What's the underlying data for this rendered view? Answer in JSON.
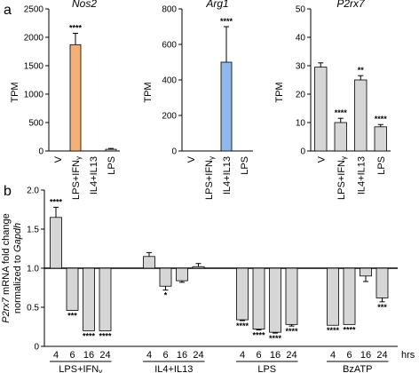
{
  "panel_a_letter": "a",
  "panel_b_letter": "b",
  "chart_data": [
    {
      "type": "bar",
      "title": "Nos2",
      "ylabel": "TPM",
      "categories": [
        "V",
        "LPS+IFNγ",
        "IL4+IL13",
        "LPS"
      ],
      "values": [
        0,
        1870,
        0,
        30
      ],
      "errors": [
        0,
        200,
        0,
        15
      ],
      "ylim": [
        0,
        2500
      ],
      "yticks": [
        "0",
        "500",
        "1000",
        "1500",
        "2000",
        "2500"
      ],
      "significance": [
        "",
        "****",
        "",
        ""
      ],
      "colors": {
        "LPS+IFNγ": "#f4b077"
      }
    },
    {
      "type": "bar",
      "title": "Arg1",
      "ylabel": "TPM",
      "categories": [
        "V",
        "LPS+IFNγ",
        "IL4+IL13",
        "LPS"
      ],
      "values": [
        0,
        0,
        500,
        0
      ],
      "errors": [
        0,
        0,
        200,
        0
      ],
      "ylim": [
        0,
        800
      ],
      "yticks": [
        "0",
        "200",
        "400",
        "600",
        "800"
      ],
      "significance": [
        "",
        "",
        "****",
        ""
      ],
      "colors": {
        "IL4+IL13": "#8fb8ec"
      }
    },
    {
      "type": "bar",
      "title": "P2rx7",
      "ylabel": "TPM",
      "categories": [
        "V",
        "LPS+IFNγ",
        "IL4+IL13",
        "LPS"
      ],
      "values": [
        29.5,
        10,
        25,
        8.5
      ],
      "errors": [
        1.5,
        1.5,
        1.5,
        0.8
      ],
      "ylim": [
        0,
        50
      ],
      "yticks": [
        "0",
        "10",
        "20",
        "30",
        "40",
        "50"
      ],
      "significance": [
        "",
        "****",
        "**",
        "****"
      ],
      "colors": {}
    },
    {
      "type": "bar",
      "ylabel_lines": [
        "P2rx7 mRNA fold change",
        "normalized to Gapdh"
      ],
      "baseline": 1.0,
      "ylim": [
        0,
        2.0
      ],
      "yticks": [
        "0",
        "0.5",
        "1.0",
        "1.5",
        "2.0"
      ],
      "x_unit": "hrs",
      "groups": [
        {
          "name": "LPS+IFNγ",
          "x": [
            "4",
            "6",
            "16",
            "24"
          ],
          "values": [
            1.65,
            0.46,
            0.2,
            0.2
          ],
          "errors": [
            0.13,
            0,
            0,
            0
          ],
          "significance": [
            "****",
            "***",
            "****",
            "****"
          ]
        },
        {
          "name": "IL4+IL13",
          "x": [
            "4",
            "6",
            "16",
            "24"
          ],
          "values": [
            1.15,
            0.77,
            0.84,
            1.02
          ],
          "errors": [
            0.05,
            0.05,
            0.02,
            0.04
          ],
          "significance": [
            "",
            "*",
            "",
            ""
          ]
        },
        {
          "name": "LPS",
          "x": [
            "4",
            "6",
            "16",
            "24"
          ],
          "values": [
            0.34,
            0.22,
            0.18,
            0.28
          ],
          "errors": [
            0.01,
            0.01,
            0.01,
            0.02
          ],
          "significance": [
            "****",
            "****",
            "****",
            "****"
          ]
        },
        {
          "name": "BzATP",
          "x": [
            "4",
            "6",
            "16",
            "24"
          ],
          "values": [
            0.27,
            0.28,
            0.9,
            0.62
          ],
          "errors": [
            0,
            0,
            0.07,
            0.05
          ],
          "significance": [
            "****",
            "****",
            "",
            "***"
          ]
        }
      ]
    }
  ]
}
